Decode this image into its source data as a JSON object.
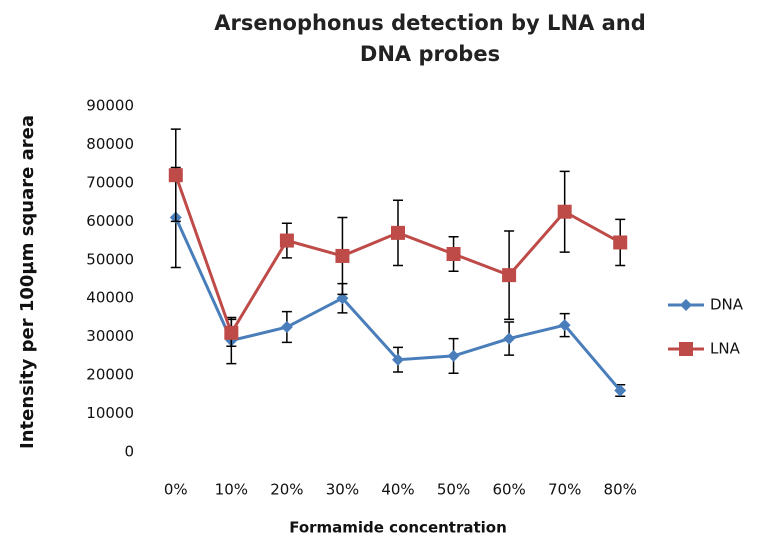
{
  "chart_data": {
    "type": "line",
    "title": "Arsenophonus detection by LNA and DNA probes",
    "x_label": "Formamide concentration",
    "y_label": "Intensity per 100µm square area",
    "categories": [
      "0%",
      "10%",
      "20%",
      "30%",
      "40%",
      "50%",
      "60%",
      "70%",
      "80%"
    ],
    "series": [
      {
        "name": "DNA",
        "color": "#4a7ebb",
        "marker": "diamond",
        "values": [
          61000,
          29000,
          32500,
          40000,
          24000,
          25000,
          29500,
          33000,
          16000
        ],
        "errors": [
          13000,
          6000,
          4000,
          3800,
          3200,
          4500,
          4300,
          3000,
          1500
        ]
      },
      {
        "name": "LNA",
        "color": "#be4b48",
        "marker": "square",
        "values": [
          72000,
          31000,
          55000,
          51000,
          57000,
          51500,
          46000,
          62500,
          54500
        ],
        "errors": [
          12000,
          3500,
          4500,
          10000,
          8500,
          4500,
          11500,
          10500,
          6000
        ]
      }
    ],
    "ylim": [
      0,
      90000
    ],
    "yticks": [
      0,
      10000,
      20000,
      30000,
      40000,
      50000,
      60000,
      70000,
      80000,
      90000
    ],
    "legend": "right"
  }
}
